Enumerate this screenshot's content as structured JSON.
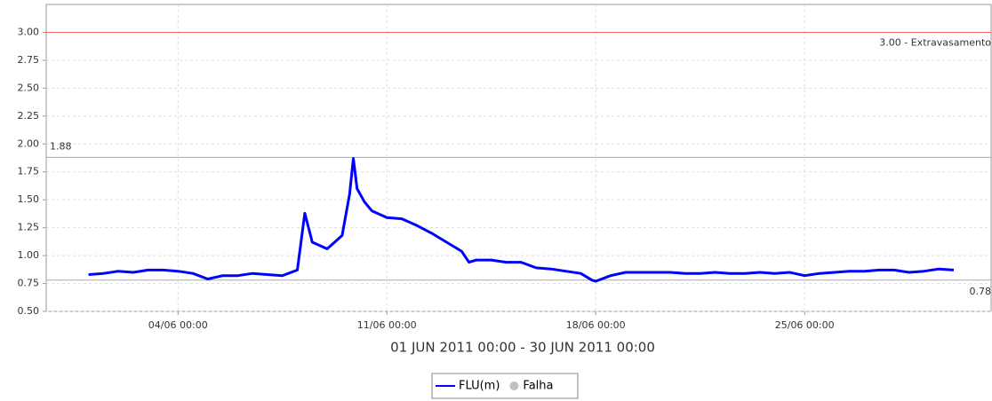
{
  "chart_data": {
    "type": "line",
    "x_label": "01 JUN 2011 00:00 - 30 JUN 2011 00:00",
    "x": [
      "01/06 00:00",
      "01/06 12:00",
      "02/06 00:00",
      "02/06 12:00",
      "03/06 00:00",
      "03/06 12:00",
      "04/06 00:00",
      "04/06 12:00",
      "05/06 00:00",
      "05/06 12:00",
      "06/06 00:00",
      "06/06 12:00",
      "07/06 00:00",
      "07/06 12:00",
      "08/06 00:00",
      "08/06 06:00",
      "08/06 12:00",
      "09/06 00:00",
      "09/06 12:00",
      "09/06 18:00",
      "09/06 21:00",
      "10/06 00:00",
      "10/06 06:00",
      "10/06 12:00",
      "11/06 00:00",
      "11/06 12:00",
      "12/06 00:00",
      "12/06 12:00",
      "13/06 00:00",
      "13/06 12:00",
      "13/06 18:00",
      "14/06 00:00",
      "14/06 12:00",
      "15/06 00:00",
      "15/06 12:00",
      "16/06 00:00",
      "16/06 12:00",
      "17/06 00:00",
      "17/06 12:00",
      "17/06 21:00",
      "18/06 00:00",
      "18/06 12:00",
      "19/06 00:00",
      "19/06 12:00",
      "20/06 00:00",
      "20/06 12:00",
      "21/06 00:00",
      "21/06 12:00",
      "22/06 00:00",
      "22/06 12:00",
      "23/06 00:00",
      "23/06 12:00",
      "24/06 00:00",
      "24/06 12:00",
      "25/06 00:00",
      "25/06 12:00",
      "26/06 00:00",
      "26/06 12:00",
      "27/06 00:00",
      "27/06 12:00",
      "28/06 00:00",
      "28/06 12:00",
      "29/06 00:00",
      "29/06 12:00",
      "30/06 00:00"
    ],
    "series": [
      {
        "name": "FLU(m)",
        "color": "#0000ff",
        "style": "line",
        "values": [
          0.83,
          0.84,
          0.86,
          0.85,
          0.87,
          0.87,
          0.86,
          0.84,
          0.79,
          0.82,
          0.82,
          0.84,
          0.83,
          0.82,
          0.87,
          1.38,
          1.12,
          1.06,
          1.18,
          1.55,
          1.87,
          1.6,
          1.48,
          1.4,
          1.34,
          1.33,
          1.27,
          1.2,
          1.12,
          1.04,
          0.94,
          0.96,
          0.96,
          0.94,
          0.94,
          0.89,
          0.88,
          0.86,
          0.84,
          0.78,
          0.77,
          0.82,
          0.85,
          0.85,
          0.85,
          0.85,
          0.84,
          0.84,
          0.85,
          0.84,
          0.84,
          0.85,
          0.84,
          0.85,
          0.82,
          0.84,
          0.85,
          0.86,
          0.86,
          0.87,
          0.87,
          0.85,
          0.86,
          0.88,
          0.87
        ]
      },
      {
        "name": "Falha",
        "color": "#c0c0c0",
        "style": "marker",
        "values": [
          null,
          null,
          null,
          null,
          null,
          null,
          null,
          null,
          null,
          null,
          null,
          null,
          null,
          null,
          null,
          null,
          null,
          null,
          null,
          null,
          null,
          null,
          null,
          null,
          null,
          null,
          null,
          null,
          null,
          null,
          null,
          null,
          null,
          null,
          null,
          null,
          null,
          null,
          null,
          null,
          null,
          null,
          null,
          null,
          null,
          null,
          null,
          null,
          null,
          null,
          null,
          null,
          null,
          null,
          null,
          null,
          null,
          null,
          null,
          null,
          null,
          null,
          null,
          null,
          null
        ]
      }
    ],
    "xlim": [
      "30/05 14:00",
      "01/07 06:00"
    ],
    "xticks": [
      "04/06 00:00",
      "11/06 00:00",
      "18/06 00:00",
      "25/06 00:00"
    ],
    "ylim": [
      0.5,
      3.25
    ],
    "yticks": [
      {
        "value": 0.5,
        "label": "0.50"
      },
      {
        "value": 0.75,
        "label": "0.75"
      },
      {
        "value": 1,
        "label": "1.00"
      },
      {
        "value": 1.25,
        "label": "1.25"
      },
      {
        "value": 1.5,
        "label": "1.50"
      },
      {
        "value": 1.75,
        "label": "1.75"
      },
      {
        "value": 2,
        "label": "2.00"
      },
      {
        "value": 2.25,
        "label": "2.25"
      },
      {
        "value": 2.5,
        "label": "2.50"
      },
      {
        "value": 2.75,
        "label": "2.75"
      },
      {
        "value": 3,
        "label": "3.00"
      }
    ],
    "grid": true,
    "reference_lines": [
      {
        "value": 3,
        "label": "3.00 - Extravasamento",
        "color": "#ff6666",
        "label_side": "right-above-below"
      },
      {
        "value": 1.88,
        "label": "1.88",
        "color": "#aaaaaa",
        "label_side": "left"
      },
      {
        "value": 0.78,
        "label": "0.78",
        "color": "#aaaaaa",
        "label_side": "right"
      }
    ]
  }
}
